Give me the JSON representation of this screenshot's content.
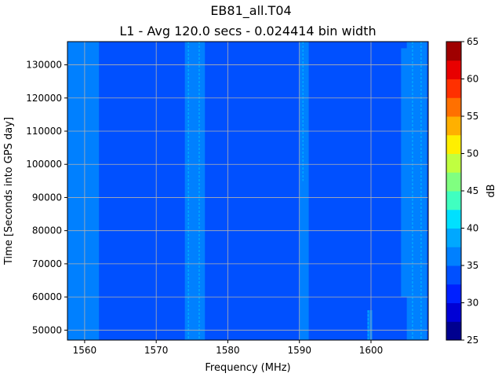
{
  "chart_data": {
    "type": "heatmap",
    "title": "EB81_all.T04",
    "subtitle": "L1 - Avg 120.0 secs - 0.024414 bin width",
    "xlabel": "Frequency (MHz)",
    "ylabel": "Time [Seconds into GPS day]",
    "xlim": [
      1557.6,
      1608.0
    ],
    "ylim": [
      47000,
      137000
    ],
    "x_ticks": [
      1560,
      1570,
      1580,
      1590,
      1600
    ],
    "y_ticks": [
      50000,
      60000,
      70000,
      80000,
      90000,
      100000,
      110000,
      120000,
      130000
    ],
    "grid": true,
    "colorbar": {
      "label": "dB",
      "min": 25,
      "max": 65,
      "step": 2.5,
      "ticks": [
        25,
        30,
        35,
        40,
        45,
        50,
        55,
        60,
        65
      ],
      "colors": [
        "#00008f",
        "#0000d5",
        "#0020ff",
        "#0050ff",
        "#0080ff",
        "#00a8ff",
        "#00e0ff",
        "#40ffc0",
        "#80ff80",
        "#c0ff40",
        "#ffef00",
        "#ffb000",
        "#ff7000",
        "#ff3000",
        "#e80000",
        "#9f0000"
      ]
    },
    "background_level_db": 34,
    "bands": [
      {
        "x0": 1557.6,
        "x1": 1562.0,
        "y0": 47000,
        "y1": 137000,
        "level_db": 36
      },
      {
        "x0": 1574.0,
        "x1": 1576.8,
        "y0": 47000,
        "y1": 137000,
        "level_db": 36
      },
      {
        "x0": 1590.0,
        "x1": 1591.3,
        "y0": 47000,
        "y1": 137000,
        "level_db": 36
      },
      {
        "x0": 1599.5,
        "x1": 1600.2,
        "y0": 47000,
        "y1": 56000,
        "level_db": 36
      },
      {
        "x0": 1605.0,
        "x1": 1607.8,
        "y0": 47000,
        "y1": 137000,
        "level_db": 36
      },
      {
        "x0": 1604.2,
        "x1": 1605.2,
        "y0": 60000,
        "y1": 135000,
        "level_db": 36
      }
    ],
    "streaks": [
      {
        "x": 1574.5,
        "y0": 47000,
        "y1": 137000,
        "level_db": 39
      },
      {
        "x": 1576.0,
        "y0": 47000,
        "y1": 137000,
        "level_db": 39
      },
      {
        "x": 1590.5,
        "y0": 95000,
        "y1": 137000,
        "level_db": 39
      },
      {
        "x": 1599.6,
        "y0": 47000,
        "y1": 56000,
        "level_db": 39
      },
      {
        "x": 1605.8,
        "y0": 47000,
        "y1": 137000,
        "level_db": 39
      },
      {
        "x": 1607.0,
        "y0": 47000,
        "y1": 137000,
        "level_db": 39
      }
    ]
  }
}
